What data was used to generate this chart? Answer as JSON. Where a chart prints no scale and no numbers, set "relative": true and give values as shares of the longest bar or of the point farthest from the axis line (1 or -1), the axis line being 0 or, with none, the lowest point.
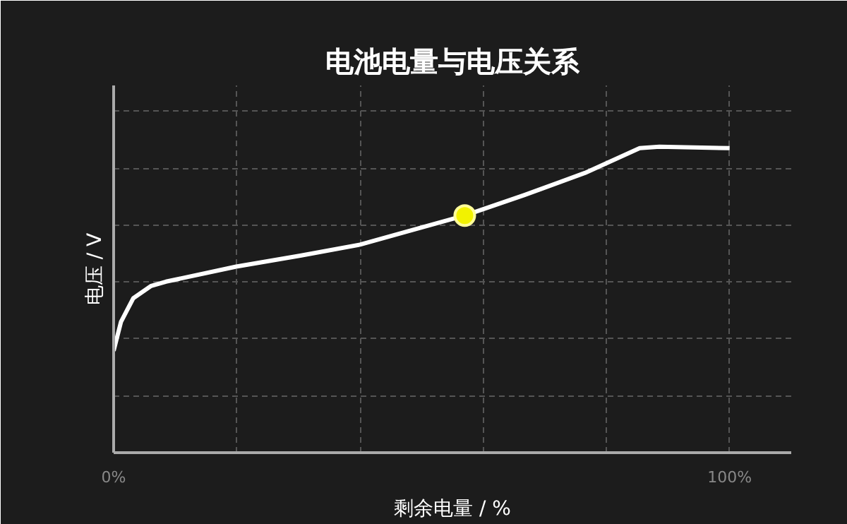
{
  "chart_data": {
    "type": "line",
    "title": "电池电量与电压关系",
    "xlabel": "剩余电量 / %",
    "ylabel": "电压 / V",
    "relative": true,
    "grid": true,
    "xlim": [
      0,
      110
    ],
    "xticks": [
      {
        "value": 0,
        "label": "0%"
      },
      {
        "value": 20,
        "label": null
      },
      {
        "value": 40,
        "label": null
      },
      {
        "value": 60,
        "label": null
      },
      {
        "value": 80,
        "label": null
      },
      {
        "value": 100,
        "label": "100%"
      }
    ],
    "series": [
      {
        "color": "#ffffff",
        "line_style": "solid",
        "marker": "none",
        "x": [
          0,
          1.2,
          3.2,
          6.1,
          8.5,
          19.9,
          30.3,
          40,
          47.3,
          57,
          66.7,
          76.5,
          85.4,
          88.6,
          100
        ],
        "values": [
          0.333,
          0.428,
          0.505,
          0.545,
          0.559,
          0.608,
          0.644,
          0.68,
          0.721,
          0.775,
          0.842,
          0.914,
          0.995,
          1.0,
          0.995
        ]
      },
      {
        "type": "scatter",
        "color": "#f2f200",
        "marker": "circle",
        "x": [
          57
        ],
        "values": [
          0.775
        ]
      }
    ]
  }
}
